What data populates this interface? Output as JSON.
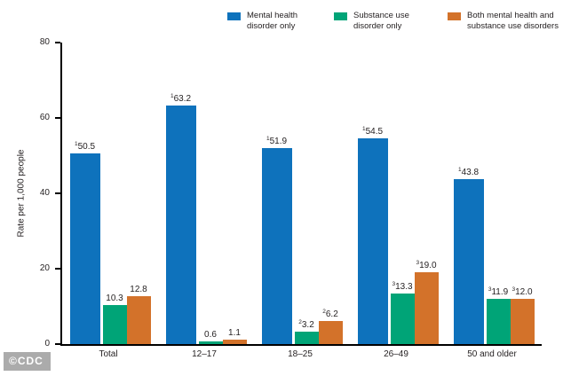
{
  "watermark": {
    "label": "©CDC"
  },
  "colors": {
    "blue": "#0e72bc",
    "green": "#00a477",
    "orange": "#d3722a",
    "axis": "#000000",
    "text": "#231f20",
    "watermark_bg": "#ababab"
  },
  "chart_data": {
    "type": "bar",
    "title": "",
    "xlabel": "",
    "ylabel": "Rate per 1,000 people",
    "ylim": [
      0,
      80
    ],
    "yticks": [
      0,
      20,
      40,
      60,
      80
    ],
    "grid": false,
    "legend_position": "top",
    "categories": [
      "Total",
      "12–17",
      "18–25",
      "26–49",
      "50 and older"
    ],
    "series": [
      {
        "name": "Mental health disorder only",
        "color_key": "blue",
        "values": [
          50.5,
          63.2,
          51.9,
          54.5,
          43.8
        ],
        "labels": [
          "50.5",
          "63.2",
          "51.9",
          "54.5",
          "43.8"
        ],
        "label_sups": [
          "1",
          "1",
          "1",
          "1",
          "1"
        ]
      },
      {
        "name": "Substance use disorder only",
        "color_key": "green",
        "values": [
          10.3,
          0.6,
          3.2,
          13.3,
          11.9
        ],
        "labels": [
          "10.3",
          "0.6",
          "3.2",
          "13.3",
          "11.9"
        ],
        "label_sups": [
          "",
          "",
          "2",
          "3",
          "3"
        ]
      },
      {
        "name": "Both mental health and substance use disorders",
        "color_key": "orange",
        "values": [
          12.8,
          1.1,
          6.2,
          19.0,
          12.0
        ],
        "labels": [
          "12.8",
          "1.1",
          "6.2",
          "19.0",
          "12.0"
        ],
        "label_sups": [
          "",
          "",
          "2",
          "3",
          "3"
        ]
      }
    ]
  }
}
